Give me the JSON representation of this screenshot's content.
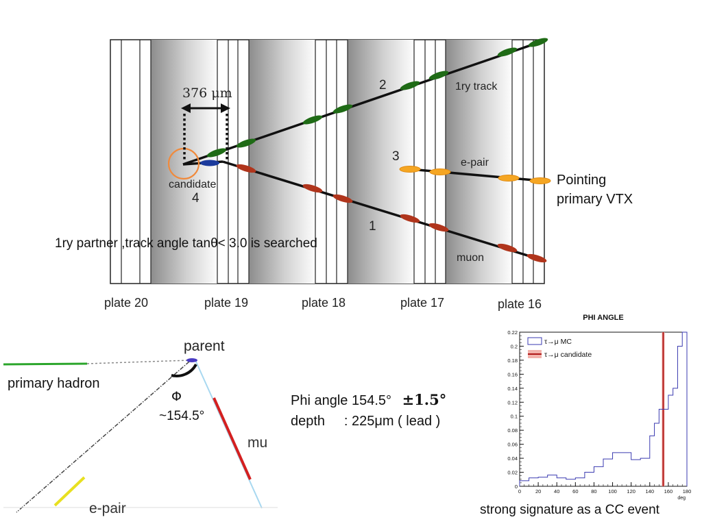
{
  "top_diagram": {
    "scale_label": "376 μm",
    "track_numbers": [
      "2",
      "3",
      "1",
      "4"
    ],
    "track_labels": {
      "primary": "1ry track",
      "epair": "e-pair",
      "muon": "muon",
      "candidate": "candidate"
    },
    "plates": [
      "plate 20",
      "plate 19",
      "plate 18",
      "plate 17",
      "plate 16"
    ],
    "pointing_note": [
      "Pointing",
      "primary  VTX"
    ],
    "search_note": "1ry partner ,track angle tanθ< 3.0 is searched",
    "colors": {
      "green": "#1f6b16",
      "red": "#b0351c",
      "blue": "#1b3a9c",
      "orange": "#f5a623",
      "circle": "#f08a3c"
    }
  },
  "bottom_diagram": {
    "labels": {
      "parent": "parent",
      "primary_hadron": "primary hadron",
      "phi_symbol": "Φ",
      "phi_value": "~154.5°",
      "mu": "mu",
      "epair": "e-pair"
    },
    "colors": {
      "hadron": "#2aa52a",
      "mu": "#d42020",
      "epair": "#e8e020",
      "parent": "#4a3cc4",
      "mu_line": "#a8d8f0"
    }
  },
  "info": {
    "phi_line_prefix": "Phi angle 154.5°",
    "phi_line_error": "±1.5°",
    "depth_line": "depth     : 225μm ( lead )"
  },
  "chart_data": {
    "type": "histogram",
    "title": "PHI ANGLE",
    "xlabel": "deg",
    "ylabel": "",
    "xlim": [
      0,
      180
    ],
    "ylim": [
      0,
      0.22
    ],
    "x_ticks": [
      0,
      20,
      40,
      60,
      80,
      100,
      120,
      140,
      160,
      180
    ],
    "y_ticks": [
      0,
      0.02,
      0.04,
      0.06,
      0.08,
      0.1,
      0.12,
      0.14,
      0.16,
      0.18,
      0.2,
      0.22
    ],
    "series": [
      {
        "name": "τ→μ MC",
        "bin_edges": [
          0,
          10,
          20,
          30,
          40,
          50,
          60,
          70,
          80,
          90,
          100,
          110,
          120,
          130,
          140,
          145,
          150,
          155,
          160,
          165,
          170,
          175,
          180
        ],
        "values": [
          0.008,
          0.012,
          0.013,
          0.016,
          0.012,
          0.01,
          0.012,
          0.02,
          0.028,
          0.039,
          0.048,
          0.048,
          0.038,
          0.04,
          0.072,
          0.09,
          0.11,
          0.11,
          0.13,
          0.14,
          0.2,
          0.22
        ]
      },
      {
        "name": "τ→μ candidate",
        "value": 154.5,
        "error": 1.5
      }
    ],
    "caption": "strong signature as a CC event",
    "legend_position": "top-left"
  }
}
